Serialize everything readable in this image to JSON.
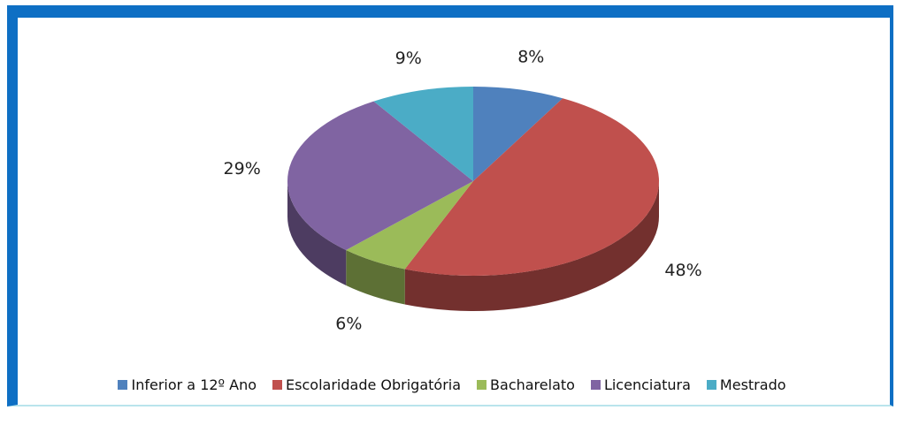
{
  "chart_data": {
    "type": "pie",
    "categories": [
      "Inferior a 12º Ano",
      "Escolaridade Obrigatória",
      "Bacharelato",
      "Licenciatura",
      "Mestrado"
    ],
    "values": [
      8,
      48,
      6,
      29,
      9
    ],
    "value_labels": [
      "8%",
      "48%",
      "6%",
      "29%",
      "9%"
    ],
    "colors": [
      "#4f81bd",
      "#c0504d",
      "#9bbb59",
      "#8064a2",
      "#4bacc6"
    ],
    "legend": "bottom"
  }
}
